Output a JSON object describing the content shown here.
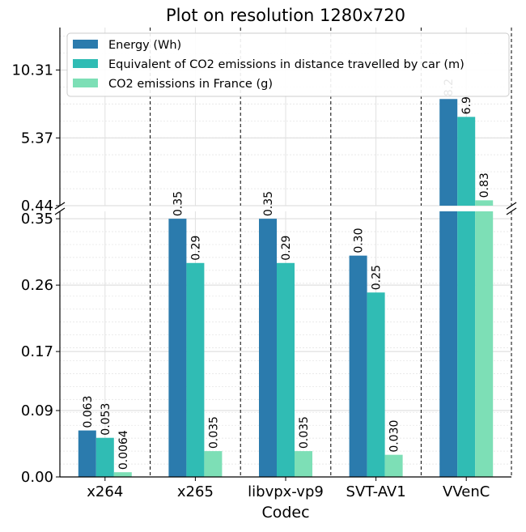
{
  "chart_data": {
    "type": "bar",
    "title": "Plot on resolution 1280x720",
    "xlabel": "Codec",
    "ylabel": "",
    "categories": [
      "x264",
      "x265",
      "libvpx-vp9",
      "SVT-AV1",
      "VVenC"
    ],
    "series": [
      {
        "name": "Energy (Wh)",
        "color": "#2b7bad",
        "values": [
          0.063,
          0.35,
          0.35,
          0.3,
          8.2
        ],
        "labels": [
          "0.063",
          "0.35",
          "0.35",
          "0.30",
          "8.2"
        ]
      },
      {
        "name": "Equivalent of CO2 emissions in distance travelled by car (m)",
        "color": "#30bcb4",
        "values": [
          0.053,
          0.29,
          0.29,
          0.25,
          6.9
        ],
        "labels": [
          "0.053",
          "0.29",
          "0.29",
          "0.25",
          "6.9"
        ]
      },
      {
        "name": "CO2 emissions in France (g)",
        "color": "#7ddfb6",
        "values": [
          0.0064,
          0.035,
          0.035,
          0.03,
          0.83
        ],
        "labels": [
          "0.0064",
          "0.035",
          "0.035",
          "0.030",
          "0.83"
        ]
      }
    ],
    "lower_axis": {
      "ylim": [
        0,
        0.36
      ],
      "ticks": [
        0.0,
        0.09,
        0.17,
        0.26,
        0.35
      ],
      "tick_labels": [
        "0.00",
        "0.09",
        "0.17",
        "0.26",
        "0.35"
      ]
    },
    "upper_axis": {
      "ylim": [
        0.44,
        13.4
      ],
      "ticks": [
        0.44,
        5.37,
        10.31
      ],
      "tick_labels": [
        "0.44",
        "5.37",
        "10.31"
      ]
    },
    "legend_position": "top-right",
    "grid": true,
    "broken_axis": true
  }
}
